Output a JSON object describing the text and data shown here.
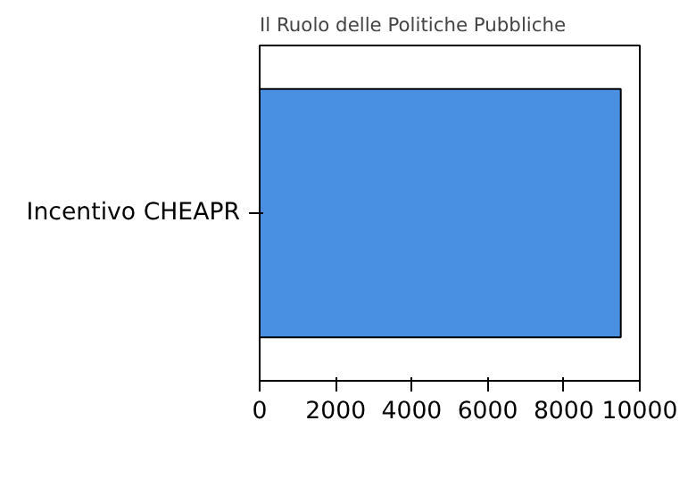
{
  "chart_data": {
    "type": "bar",
    "orientation": "horizontal",
    "title": "Il Ruolo delle Politiche Pubbliche",
    "categories": [
      "Incentivo CHEAPR"
    ],
    "values": [
      9500
    ],
    "color": "#4a90e2",
    "xlim": [
      0,
      10000
    ],
    "xticks": [
      0,
      2000,
      4000,
      6000,
      8000,
      10000
    ],
    "grid": false
  }
}
